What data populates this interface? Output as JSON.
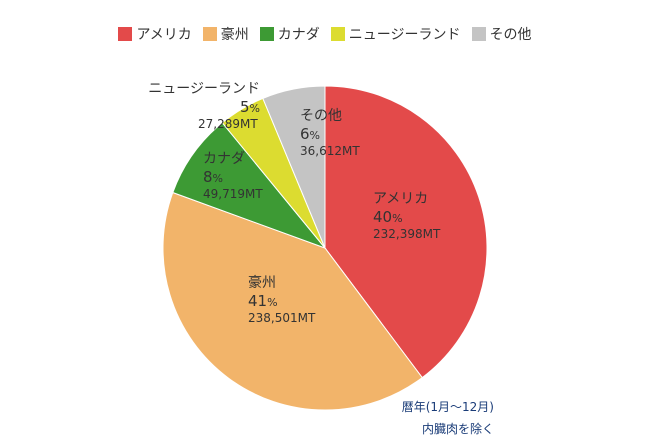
{
  "chart_data": {
    "type": "pie",
    "categories": [
      "アメリカ",
      "豪州",
      "カナダ",
      "ニュージーランド",
      "その他"
    ],
    "colors": [
      "#e34a4a",
      "#f2b46a",
      "#3d9a34",
      "#dcdc30",
      "#c4c4c4"
    ],
    "percent_labels": [
      "40",
      "41",
      "8",
      "5",
      "6"
    ],
    "percent_sign": "%",
    "value_labels": [
      "232,398MT",
      "238,501MT",
      "49,719MT",
      "27,289MT",
      "36,612MT"
    ],
    "values": [
      232398,
      238501,
      49719,
      27289,
      36612
    ],
    "legend_position": "top-center",
    "start_angle_deg": 0,
    "direction": "clockwise"
  },
  "notes": {
    "line1": "暦年(1月～12月)",
    "line2": "内臓肉を除く"
  }
}
